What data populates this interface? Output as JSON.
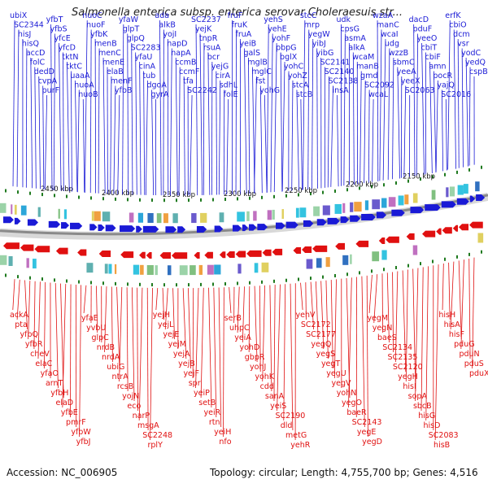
{
  "title": "Salmonella enterica subsp. enterica serovar Choleraesuis str...",
  "footer": {
    "accession": "Accession: NC_006905",
    "topology": "Topology: circular; Length: 4,755,700 bp; Genes: 4,516"
  },
  "colors": {
    "forward": "#1a1ad6",
    "reverse": "#e01010",
    "backbone": "#8a8a8a",
    "tick": "#1f7a1f"
  },
  "kbp_labels": [
    "2450 kbp",
    "2400 kbp",
    "2350 kbp",
    "2300 kbp",
    "2250 kbp",
    "2200 kbp",
    "2150 kbp"
  ],
  "forward_genes": [
    "ubiX",
    "SC2344",
    "hisJ",
    "hisQ",
    "accD",
    "folC",
    "dedD",
    "cvpA",
    "purF",
    "yfbT",
    "yfbS",
    "yfcE",
    "yfcD",
    "tktN",
    "tktC",
    "uaaA",
    "nuoA",
    "nuoB",
    "nuoC",
    "nuoF",
    "yfbK",
    "menB",
    "menC",
    "menE",
    "elaB",
    "menF",
    "yfbB",
    "yfaW",
    "glpT",
    "glpQ",
    "SC2283",
    "yfaU",
    "cinA",
    "tub",
    "dgoA",
    "gyrA",
    "ada",
    "alkB",
    "yojI",
    "napD",
    "napA",
    "ccmB",
    "ccmF",
    "tfa",
    "SC2242",
    "SC2237",
    "yejK",
    "tnpR",
    "rsuA",
    "bcr",
    "yejG",
    "cirA",
    "sdhL",
    "folE",
    "fruF",
    "fruK",
    "fruA",
    "yeiB",
    "galS",
    "mglB",
    "mglC",
    "fst",
    "yohG",
    "yehS",
    "yehE",
    "yohF",
    "pbpG",
    "bglX",
    "yohC",
    "yohZ",
    "stcA",
    "stcB",
    "stcC",
    "mrp",
    "yegW",
    "yibJ",
    "yibG",
    "SC2141",
    "SC2140",
    "SC2138",
    "insA",
    "udk",
    "cpsG",
    "asmA",
    "alkA",
    "wcaM",
    "manB",
    "gmd",
    "SC2092",
    "wcaL",
    "wzaA",
    "manC",
    "wcaI",
    "udg",
    "wzzB",
    "sbmC",
    "yeeA",
    "yeeX",
    "SC2063",
    "dacD",
    "pduF",
    "yeeO",
    "cbiT",
    "cbiF",
    "amn",
    "pocR",
    "yajQ",
    "SC2016",
    "erfK",
    "cbiO",
    "dcm",
    "vsr",
    "yodC",
    "yedQ",
    "cspB"
  ],
  "reverse_genes": [
    "ackA",
    "pta",
    "yfbQ",
    "yfbR",
    "cheV",
    "elaC",
    "yfaO",
    "arnT",
    "yfbH",
    "elaD",
    "yfbE",
    "pmrF",
    "yfbW",
    "yfbJ",
    "yfaE",
    "yvbU",
    "glpC",
    "nrdB",
    "nrdA",
    "ubiG",
    "ntrA",
    "rcsB",
    "yojN",
    "eco",
    "narP",
    "msgA",
    "SC2248",
    "rplY",
    "yejH",
    "yejL",
    "yejE",
    "yejM",
    "yejA",
    "yejB",
    "yejF",
    "spr",
    "yeiP",
    "setB",
    "yeiR",
    "rtn",
    "yeiH",
    "nfo",
    "serB",
    "uhpC",
    "yeiA",
    "yohD",
    "gbpR",
    "yohJ",
    "yohK",
    "cdd",
    "sanA",
    "yeiS",
    "SC2190",
    "dld",
    "metG",
    "yehR",
    "yehV",
    "SC2172",
    "SC2177",
    "yegQ",
    "yegS",
    "yegT",
    "yegU",
    "yegV",
    "yohN",
    "yegO",
    "baeR",
    "SC2143",
    "yegE",
    "yegD",
    "yegM",
    "yegN",
    "baeS",
    "SC2134",
    "SC2135",
    "SC2120",
    "yegH",
    "hisI",
    "sopA",
    "sbcB",
    "hisG",
    "hisD",
    "SC2083",
    "hisB",
    "hisH",
    "hisA",
    "hisF",
    "pduG",
    "pduN",
    "pduS",
    "pduX"
  ]
}
